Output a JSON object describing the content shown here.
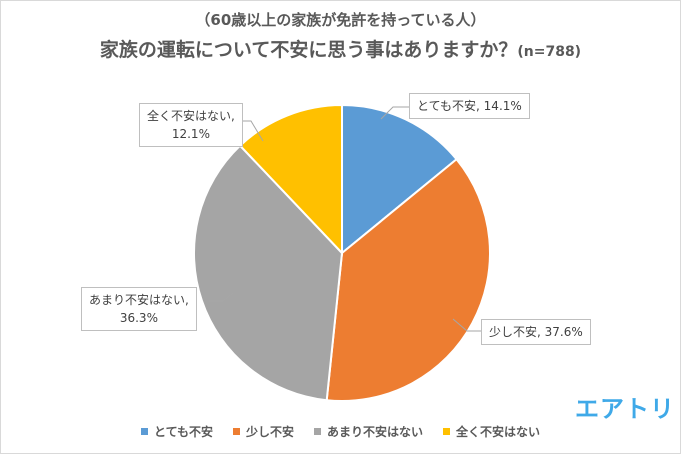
{
  "chart_data": {
    "type": "pie",
    "subtitle": "（60歳以上の家族が免許を持っている人）",
    "title": "家族の運転について不安に思う事はありますか？",
    "sample_note": "(n=788)",
    "slices": [
      {
        "label": "とても不安",
        "value": 14.1,
        "display": "とても不安, 14.1%",
        "color": "#5b9bd5"
      },
      {
        "label": "少し不安",
        "value": 37.6,
        "display": "少し不安, 37.6%",
        "color": "#ed7d31"
      },
      {
        "label": "あまり不安はない",
        "value": 36.3,
        "display_line1": "あまり不安はない,",
        "display_line2": "36.3%",
        "color": "#a5a5a5"
      },
      {
        "label": "全く不安はない",
        "value": 12.1,
        "display_line1": "全く不安はない,",
        "display_line2": "12.1%",
        "color": "#ffc000"
      }
    ],
    "legend_position": "bottom"
  },
  "brand": {
    "logo_text": "エアトリ"
  }
}
